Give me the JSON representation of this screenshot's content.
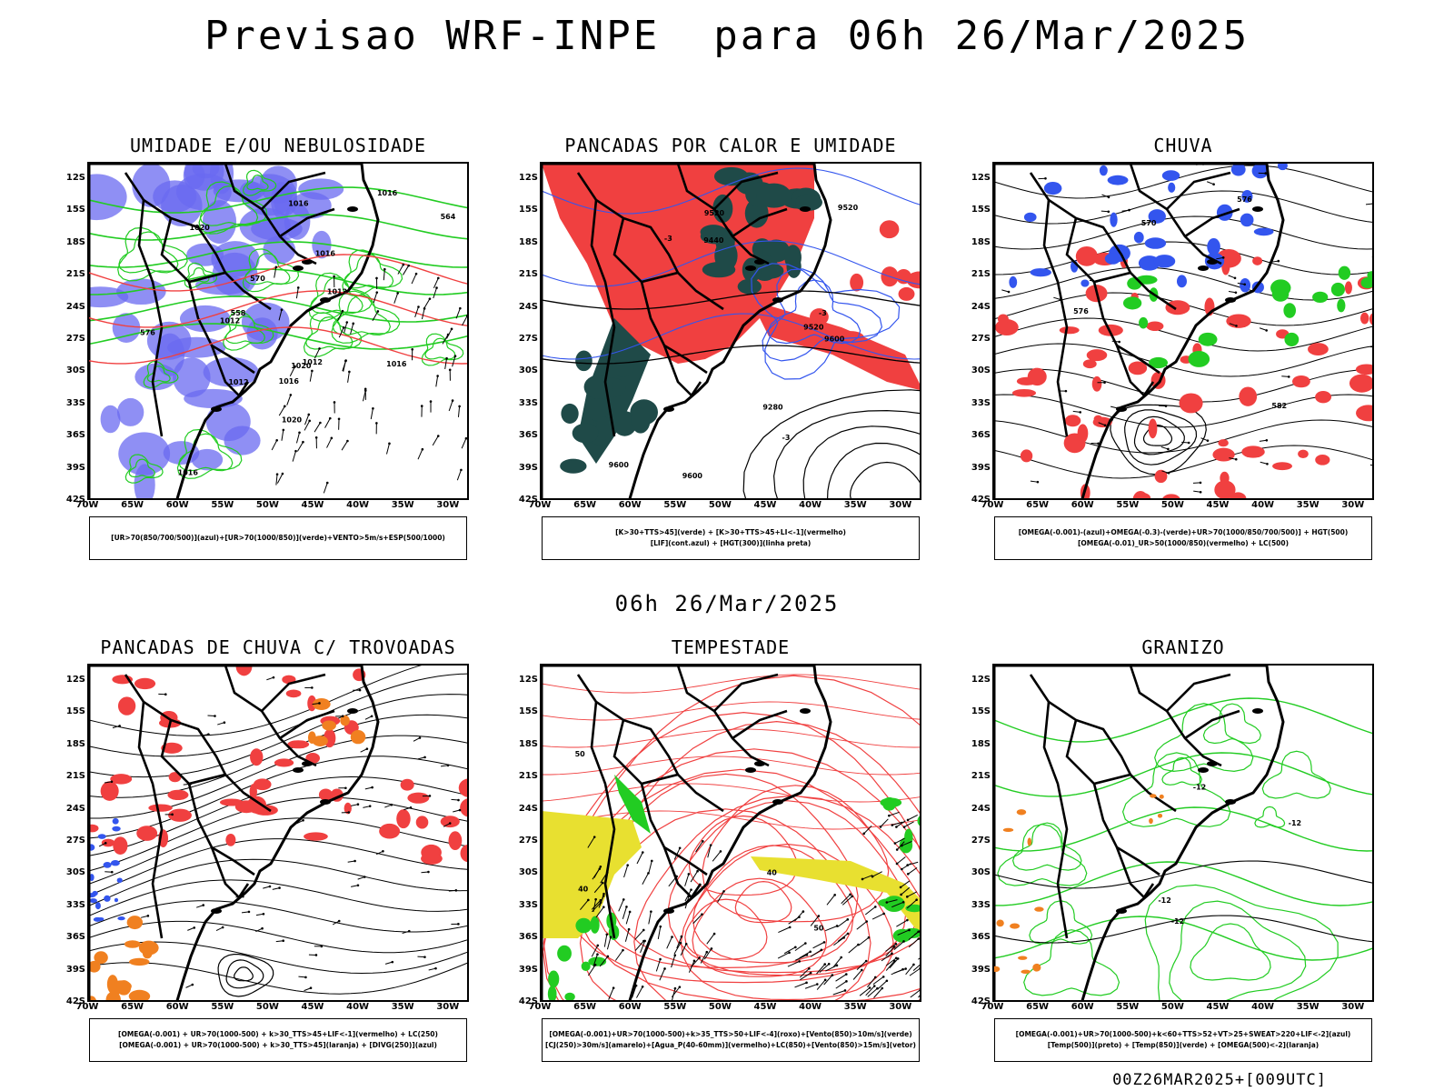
{
  "title": "Previsao WRF-INPE  para 06h 26/Mar/2025",
  "mid_label": "06h 26/Mar/2025",
  "footer": "00Z26MAR2025+[009UTC]",
  "axes": {
    "lat_labels": [
      "12S",
      "15S",
      "18S",
      "21S",
      "24S",
      "27S",
      "30S",
      "33S",
      "36S",
      "39S",
      "42S"
    ],
    "lon_labels": [
      "70W",
      "65W",
      "60W",
      "55W",
      "50W",
      "45W",
      "40W",
      "35W",
      "30W"
    ]
  },
  "colors": {
    "humidity_blue": "#6a6af0",
    "green": "#22cc22",
    "red": "#f04040",
    "dark_teal": "#1f4a48",
    "contour_blue": "#3355ee",
    "yellow": "#e8e030",
    "orange": "#f08020",
    "purple": "#8a3a8a"
  },
  "panels": [
    {
      "title": "UMIDADE E/OU NEBULOSIDADE",
      "legend": [
        "[UR>70(850/700/500)](azul)+[UR>70(1000/850)](verde)+VENTO>5m/s+ESP(500/1000)"
      ],
      "contour_labels": [
        "1016",
        "1012",
        "1012",
        "1016",
        "1016",
        "1016",
        "1012",
        "1016",
        "1016",
        "576",
        "570",
        "564",
        "558",
        "1020",
        "1020",
        "1020",
        "1012"
      ]
    },
    {
      "title": "PANCADAS POR CALOR E UMIDADE",
      "legend": [
        "[K>30+TTS>45](verde) + [K>30+TTS>45+LI<-1](vermelho)",
        "[LIF](cont.azul) + [HGT(300)](linha preta)"
      ],
      "contour_labels": [
        "9600",
        "9600",
        "9600",
        "9520",
        "9520",
        "9520",
        "9280",
        "9440",
        "-3",
        "-3",
        "-3"
      ]
    },
    {
      "title": "CHUVA",
      "legend": [
        "[OMEGA(-0.001)-(azul)+OMEGA(-0.3)-(verde)+UR>70(1000/850/700/500)] + HGT(500)",
        "[OMEGA(-0.01)_UR>50(1000/850)(vermelho) + LC(500)"
      ],
      "contour_labels": [
        "582",
        "576",
        "570",
        "576"
      ]
    },
    {
      "title": "PANCADAS DE CHUVA C/ TROVOADAS",
      "legend": [
        "[OMEGA(-0.001) + UR>70(1000-500) + k>30_TTS>45+LIF<-1](vermelho) + LC(250)",
        "[OMEGA(-0.001) + UR>70(1000-500) + k>30_TTS>45](laranja) + [DIVG(250)](azul)"
      ],
      "contour_labels": []
    },
    {
      "title": "TEMPESTADE",
      "legend": [
        "[OMEGA(-0.001)+UR>70(1000-500)+k>35_TTS>50+LIF<-4](roxo)+[Vento(850)>10m/s](verde)",
        "[CJ(250)>30m/s](amarelo)+[Agua_P(40-60mm)](vermelho)+LC(850)+[Vento(850)>15m/s](vetor)"
      ],
      "contour_labels": [
        "50",
        "50",
        "40",
        "40"
      ]
    },
    {
      "title": "GRANIZO",
      "legend": [
        "[OMEGA(-0.001)+UR>70(1000-500)+k<60+TTS>52+VT>25+SWEAT>220+LIF<-2](azul)",
        "[Temp(500)](preto) + [Temp(850)](verde) + [OMEGA(500)<-2](laranja)"
      ],
      "contour_labels": [
        "-12",
        "-12",
        "-12",
        "-12"
      ]
    }
  ]
}
